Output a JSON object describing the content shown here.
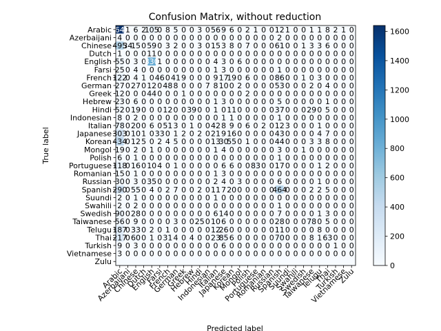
{
  "chart_data": {
    "type": "heatmap",
    "title": "Confusion Matrix, without reduction",
    "xlabel": "Predicted label",
    "ylabel": "True label",
    "colormap": "Blues",
    "vmin": 0,
    "vmax": 1640,
    "colorbar_ticks": [
      0,
      200,
      400,
      600,
      800,
      1000,
      1200,
      1400,
      1600
    ],
    "labels": [
      "Arabic",
      "Azerbaijani",
      "Chinese",
      "Dutch",
      "English",
      "Farsi",
      "French",
      "German",
      "Greek",
      "Hebrew",
      "Hindi",
      "Indonesian",
      "Italian",
      "Japanese",
      "Korean",
      "Mongol",
      "Polish",
      "Portuguese",
      "Romanian",
      "Russian",
      "Spanish",
      "Suundi",
      "Swahili",
      "Swedish",
      "Taiwanese",
      "Telugu",
      "Thai",
      "Turkish",
      "Vietnamese",
      "Zulu"
    ],
    "matrix": [
      [
        1640,
        1,
        6,
        2,
        105,
        0,
        8,
        5,
        0,
        0,
        3,
        0,
        56,
        9,
        6,
        0,
        2,
        1,
        0,
        0,
        12,
        1,
        0,
        0,
        1,
        1,
        8,
        2,
        1,
        0
      ],
      [
        4,
        0,
        0,
        0,
        0,
        0,
        0,
        0,
        0,
        0,
        0,
        0,
        0,
        0,
        0,
        0,
        0,
        0,
        0,
        0,
        2,
        0,
        0,
        0,
        0,
        0,
        0,
        0,
        0,
        0
      ],
      [
        495,
        34,
        15,
        0,
        59,
        0,
        3,
        2,
        0,
        0,
        3,
        0,
        15,
        3,
        8,
        0,
        7,
        0,
        0,
        0,
        61,
        0,
        0,
        1,
        3,
        3,
        6,
        0,
        0,
        0
      ],
      [
        1,
        0,
        0,
        0,
        11,
        0,
        0,
        0,
        0,
        0,
        0,
        0,
        0,
        0,
        0,
        0,
        0,
        0,
        0,
        0,
        0,
        0,
        0,
        0,
        0,
        0,
        0,
        0,
        0,
        0
      ],
      [
        55,
        0,
        3,
        0,
        830,
        1,
        0,
        0,
        0,
        0,
        0,
        0,
        4,
        3,
        0,
        6,
        0,
        0,
        0,
        0,
        0,
        0,
        0,
        0,
        0,
        0,
        0,
        0,
        0,
        0
      ],
      [
        25,
        0,
        4,
        0,
        0,
        0,
        0,
        0,
        0,
        0,
        0,
        0,
        1,
        3,
        0,
        0,
        0,
        0,
        0,
        0,
        1,
        0,
        0,
        0,
        0,
        0,
        0,
        0,
        0,
        0
      ],
      [
        122,
        0,
        4,
        1,
        0,
        46,
        0,
        41,
        9,
        0,
        0,
        0,
        9,
        17,
        19,
        0,
        6,
        0,
        0,
        0,
        86,
        0,
        0,
        1,
        0,
        3,
        0,
        0,
        0,
        0
      ],
      [
        27,
        0,
        27,
        0,
        12,
        0,
        48,
        8,
        0,
        0,
        0,
        7,
        8,
        10,
        0,
        2,
        0,
        0,
        0,
        0,
        53,
        0,
        0,
        0,
        2,
        0,
        4,
        0,
        0,
        0
      ],
      [
        12,
        0,
        0,
        0,
        44,
        0,
        0,
        0,
        1,
        0,
        0,
        0,
        0,
        0,
        0,
        0,
        2,
        0,
        0,
        0,
        0,
        0,
        0,
        0,
        0,
        0,
        0,
        0,
        0,
        0
      ],
      [
        23,
        0,
        6,
        0,
        0,
        0,
        0,
        0,
        0,
        0,
        0,
        0,
        1,
        3,
        0,
        0,
        0,
        0,
        0,
        0,
        5,
        0,
        0,
        0,
        0,
        0,
        1,
        0,
        0,
        0
      ],
      [
        52,
        0,
        19,
        0,
        0,
        0,
        12,
        0,
        0,
        39,
        0,
        0,
        1,
        0,
        11,
        0,
        0,
        0,
        0,
        0,
        37,
        0,
        0,
        0,
        29,
        0,
        5,
        0,
        0,
        0
      ],
      [
        8,
        0,
        2,
        0,
        0,
        0,
        0,
        0,
        0,
        0,
        0,
        0,
        0,
        1,
        1,
        0,
        0,
        0,
        0,
        0,
        1,
        0,
        0,
        0,
        0,
        0,
        0,
        0,
        0,
        0
      ],
      [
        78,
        0,
        20,
        0,
        6,
        0,
        51,
        3,
        0,
        1,
        0,
        0,
        42,
        8,
        9,
        0,
        6,
        0,
        2,
        0,
        12,
        3,
        0,
        0,
        0,
        1,
        0,
        0,
        0,
        0
      ],
      [
        303,
        0,
        10,
        1,
        0,
        33,
        0,
        1,
        2,
        0,
        2,
        0,
        21,
        9,
        16,
        0,
        0,
        0,
        0,
        0,
        43,
        0,
        0,
        0,
        0,
        4,
        7,
        0,
        0,
        0
      ],
      [
        434,
        0,
        12,
        5,
        0,
        2,
        4,
        5,
        0,
        0,
        0,
        0,
        13,
        30,
        55,
        0,
        1,
        0,
        0,
        0,
        44,
        0,
        0,
        0,
        3,
        3,
        8,
        0,
        0,
        0
      ],
      [
        19,
        0,
        2,
        0,
        1,
        0,
        0,
        0,
        0,
        0,
        0,
        0,
        1,
        4,
        0,
        0,
        0,
        0,
        0,
        0,
        3,
        0,
        0,
        1,
        0,
        0,
        0,
        0,
        0,
        0
      ],
      [
        6,
        0,
        1,
        0,
        0,
        0,
        0,
        0,
        0,
        0,
        0,
        0,
        0,
        0,
        0,
        0,
        0,
        0,
        0,
        0,
        1,
        0,
        0,
        0,
        0,
        0,
        0,
        0,
        0,
        0
      ],
      [
        118,
        0,
        16,
        0,
        10,
        4,
        0,
        1,
        0,
        0,
        0,
        0,
        0,
        6,
        6,
        0,
        0,
        83,
        0,
        0,
        17,
        0,
        0,
        0,
        0,
        1,
        2,
        0,
        0,
        0
      ],
      [
        15,
        0,
        1,
        0,
        0,
        0,
        0,
        0,
        0,
        0,
        0,
        0,
        1,
        3,
        0,
        0,
        0,
        0,
        0,
        0,
        0,
        0,
        0,
        0,
        0,
        0,
        0,
        0,
        0,
        0
      ],
      [
        30,
        0,
        3,
        0,
        35,
        0,
        0,
        0,
        0,
        0,
        0,
        0,
        2,
        4,
        0,
        3,
        0,
        0,
        0,
        0,
        6,
        0,
        0,
        0,
        0,
        1,
        0,
        0,
        0,
        0
      ],
      [
        290,
        0,
        55,
        0,
        4,
        0,
        2,
        7,
        0,
        0,
        2,
        0,
        11,
        7,
        20,
        0,
        0,
        0,
        0,
        0,
        464,
        0,
        0,
        0,
        2,
        2,
        5,
        0,
        0,
        0
      ],
      [
        2,
        0,
        1,
        0,
        0,
        0,
        0,
        0,
        0,
        0,
        0,
        0,
        1,
        0,
        0,
        0,
        0,
        0,
        0,
        0,
        0,
        0,
        0,
        0,
        0,
        0,
        0,
        0,
        0,
        0
      ],
      [
        2,
        0,
        2,
        0,
        0,
        0,
        0,
        0,
        0,
        0,
        0,
        0,
        0,
        0,
        0,
        0,
        0,
        0,
        0,
        0,
        1,
        0,
        0,
        0,
        0,
        0,
        0,
        0,
        0,
        0
      ],
      [
        90,
        0,
        28,
        0,
        0,
        0,
        0,
        0,
        0,
        0,
        0,
        0,
        6,
        14,
        0,
        0,
        0,
        0,
        0,
        0,
        7,
        0,
        0,
        0,
        0,
        1,
        3,
        0,
        0,
        0
      ],
      [
        56,
        0,
        9,
        0,
        0,
        0,
        0,
        3,
        0,
        0,
        25,
        0,
        10,
        6,
        0,
        0,
        0,
        0,
        0,
        0,
        28,
        0,
        0,
        0,
        78,
        0,
        5,
        0,
        0,
        0
      ],
      [
        187,
        0,
        33,
        0,
        2,
        0,
        1,
        0,
        0,
        0,
        0,
        0,
        12,
        26,
        0,
        0,
        0,
        0,
        0,
        0,
        11,
        0,
        0,
        0,
        0,
        8,
        0,
        0,
        0,
        0
      ],
      [
        217,
        0,
        60,
        0,
        1,
        0,
        31,
        4,
        0,
        4,
        0,
        0,
        23,
        85,
        6,
        0,
        0,
        0,
        0,
        0,
        70,
        0,
        0,
        0,
        8,
        1,
        63,
        0,
        0,
        0
      ],
      [
        9,
        0,
        3,
        0,
        0,
        0,
        0,
        0,
        0,
        0,
        0,
        0,
        0,
        6,
        0,
        0,
        0,
        0,
        0,
        0,
        0,
        0,
        0,
        0,
        0,
        0,
        0,
        1,
        0,
        0
      ],
      [
        3,
        0,
        0,
        0,
        0,
        0,
        0,
        0,
        0,
        0,
        0,
        0,
        0,
        0,
        0,
        0,
        0,
        0,
        0,
        0,
        0,
        0,
        0,
        0,
        0,
        0,
        0,
        0,
        0,
        0
      ],
      [
        0,
        0,
        0,
        0,
        0,
        0,
        0,
        0,
        0,
        0,
        0,
        0,
        0,
        0,
        0,
        0,
        0,
        0,
        0,
        0,
        0,
        0,
        0,
        0,
        0,
        0,
        0,
        0,
        0,
        0
      ]
    ]
  }
}
